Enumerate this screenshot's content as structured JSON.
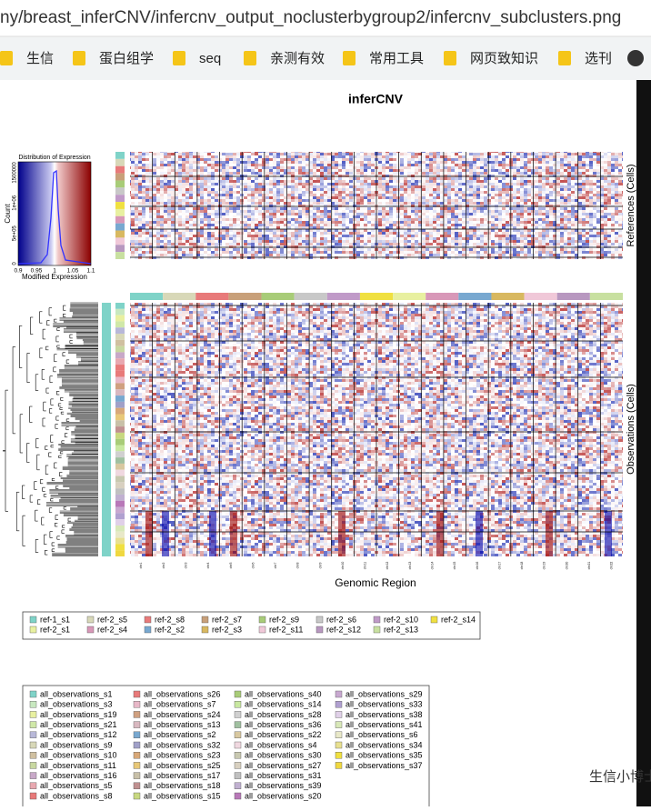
{
  "browser": {
    "url": "ny/breast_inferCNV/infercnv_output_noclusterbygroup2/infercnv_subclusters.png",
    "bookmarks": [
      "生信",
      "蛋白组学",
      "seq",
      "亲测有效",
      "常用工具",
      "网页致知识",
      "选刊"
    ]
  },
  "figure": {
    "title": "inferCNV",
    "histogram": {
      "title": "Distribution of Expression",
      "xlabel": "Modified Expression",
      "ylabel": "Count",
      "xticks": [
        "0.9",
        "0.95",
        "1",
        "1.05",
        "1.1"
      ],
      "yticks": [
        "0",
        "5e+05",
        "1e+06",
        "1500000"
      ]
    },
    "ref_label": "References (Cells)",
    "obs_label": "Observations (Cells)",
    "xlabel": "Genomic Region",
    "chromosomes": [
      "chr1",
      "chr2",
      "chr3",
      "chr4",
      "chr5",
      "chr6",
      "chr7",
      "chr8",
      "chr9",
      "chr10",
      "chr11",
      "chr12",
      "chr13",
      "chr14",
      "chr15",
      "chr16",
      "chr17",
      "chr18",
      "chr19",
      "chr20",
      "chr21",
      "chr22"
    ]
  },
  "legend_references": [
    {
      "label": "ref-1_s1",
      "color": "#7fd3c8"
    },
    {
      "label": "ref-2_s5",
      "color": "#d8d8b8"
    },
    {
      "label": "ref-2_s8",
      "color": "#e87a7a"
    },
    {
      "label": "ref-2_s7",
      "color": "#c8a07a"
    },
    {
      "label": "ref-2_s9",
      "color": "#a8cc78"
    },
    {
      "label": "ref-2_s6",
      "color": "#c8c8c8"
    },
    {
      "label": "ref-2_s10",
      "color": "#c09ac8"
    },
    {
      "label": "ref-2_s14",
      "color": "#f0e040"
    },
    {
      "label": "ref-2_s1",
      "color": "#e8f0a0"
    },
    {
      "label": "ref-2_s4",
      "color": "#d898b8"
    },
    {
      "label": "ref-2_s2",
      "color": "#78a8d0"
    },
    {
      "label": "ref-2_s3",
      "color": "#d8b860"
    },
    {
      "label": "ref-2_s11",
      "color": "#f0c8d8"
    },
    {
      "label": "ref-2_s12",
      "color": "#b898c0"
    },
    {
      "label": "ref-2_s13",
      "color": "#c8e0a0"
    }
  ],
  "legend_observations": [
    {
      "label": "all_observations_s1",
      "color": "#7fd3c8"
    },
    {
      "label": "all_observations_s3",
      "color": "#c8e8c0"
    },
    {
      "label": "all_observations_s19",
      "color": "#e8f0a0"
    },
    {
      "label": "all_observations_s21",
      "color": "#d0e8a8"
    },
    {
      "label": "all_observations_s12",
      "color": "#b8b8d8"
    },
    {
      "label": "all_observations_s9",
      "color": "#d8d8b8"
    },
    {
      "label": "all_observations_s10",
      "color": "#d0c0a0"
    },
    {
      "label": "all_observations_s11",
      "color": "#c8d8a0"
    },
    {
      "label": "all_observations_s16",
      "color": "#c8a8c8"
    },
    {
      "label": "all_observations_s5",
      "color": "#e8a8b0"
    },
    {
      "label": "all_observations_s8",
      "color": "#e87a7a"
    },
    {
      "label": "all_observations_s26",
      "color": "#e87a7a"
    },
    {
      "label": "all_observations_s7",
      "color": "#e8b8c8"
    },
    {
      "label": "all_observations_s24",
      "color": "#d0a080"
    },
    {
      "label": "all_observations_s13",
      "color": "#d8b8c0"
    },
    {
      "label": "all_observations_s2",
      "color": "#78a8d0"
    },
    {
      "label": "all_observations_s32",
      "color": "#a0a0c8"
    },
    {
      "label": "all_observations_s23",
      "color": "#d8a878"
    },
    {
      "label": "all_observations_s25",
      "color": "#e8c878"
    },
    {
      "label": "all_observations_s17",
      "color": "#c8c0a8"
    },
    {
      "label": "all_observations_s18",
      "color": "#c09090"
    },
    {
      "label": "all_observations_s15",
      "color": "#c8d880"
    },
    {
      "label": "all_observations_s40",
      "color": "#a8cc78"
    },
    {
      "label": "all_observations_s14",
      "color": "#c8e8a0"
    },
    {
      "label": "all_observations_s28",
      "color": "#d0d0d0"
    },
    {
      "label": "all_observations_s36",
      "color": "#a0c0a0"
    },
    {
      "label": "all_observations_s22",
      "color": "#d8c8a0"
    },
    {
      "label": "all_observations_s4",
      "color": "#f0d8e0"
    },
    {
      "label": "all_observations_s30",
      "color": "#c8c8b0"
    },
    {
      "label": "all_observations_s27",
      "color": "#d8d0c0"
    },
    {
      "label": "all_observations_s31",
      "color": "#c0c0c0"
    },
    {
      "label": "all_observations_s39",
      "color": "#c0b0d0"
    },
    {
      "label": "all_observations_s20",
      "color": "#b878b8"
    },
    {
      "label": "all_observations_s29",
      "color": "#c8a8d0"
    },
    {
      "label": "all_observations_s33",
      "color": "#b0a0d0"
    },
    {
      "label": "all_observations_s38",
      "color": "#e0d0e8"
    },
    {
      "label": "all_observations_s41",
      "color": "#d8e8b8"
    },
    {
      "label": "all_observations_s6",
      "color": "#e8e8c8"
    },
    {
      "label": "all_observations_s34",
      "color": "#e8e090"
    },
    {
      "label": "all_observations_s35",
      "color": "#f0e040"
    },
    {
      "label": "all_observations_s37",
      "color": "#f0d840"
    }
  ],
  "watermark": "生信小博士"
}
